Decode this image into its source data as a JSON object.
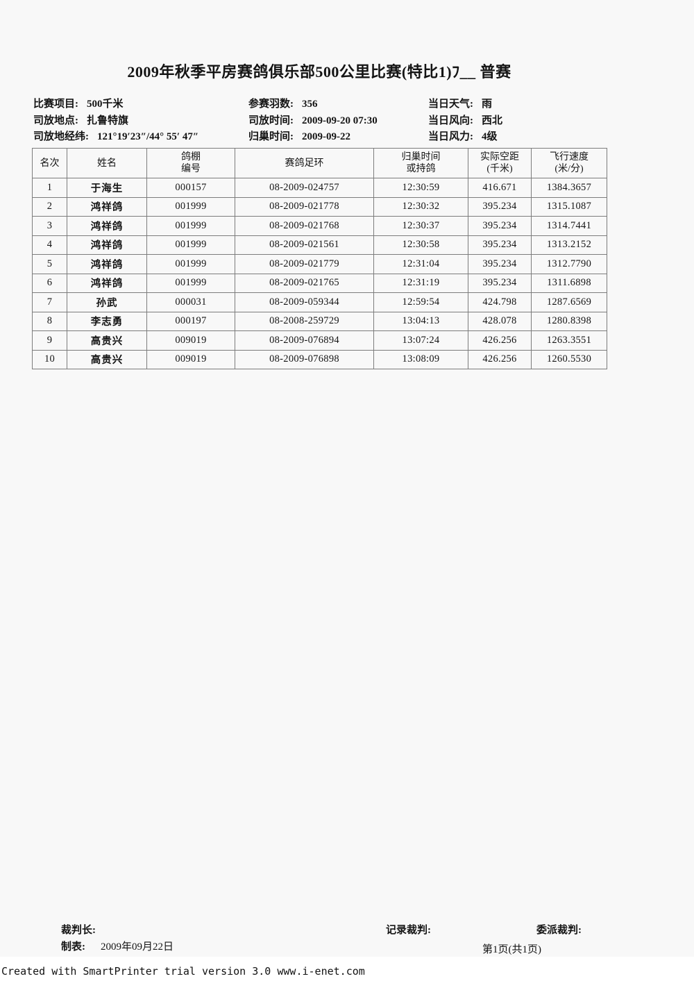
{
  "title": "2009年秋季平房赛鸽俱乐部500公里比赛(特比1)ﾌ__ 普赛",
  "info": {
    "col1": [
      {
        "label": "比赛项目:",
        "value": "500千米"
      },
      {
        "label": "司放地点:",
        "value": "扎鲁特旗"
      },
      {
        "label": "司放地经纬:",
        "value": "121°19′23″/44° 55′ 47″"
      }
    ],
    "col2": [
      {
        "label": "参赛羽数:",
        "value": "356"
      },
      {
        "label": "司放时间:",
        "value": "2009-09-20  07:30"
      },
      {
        "label": "归巢时间:",
        "value": "2009-09-22"
      }
    ],
    "col3": [
      {
        "label": "当日天气:",
        "value": "雨"
      },
      {
        "label": "当日风向:",
        "value": "西北"
      },
      {
        "label": "当日风力:",
        "value": "4级"
      }
    ]
  },
  "table": {
    "headers": [
      "名次",
      "姓名",
      "鸽棚\n编号",
      "赛鸽足环",
      "归巢时间\n或持鸽",
      "实际空距\n(千米)",
      "飞行速度\n(米/分)"
    ],
    "col_keys": [
      "rank",
      "name",
      "loft-number",
      "ring-number",
      "arrival-time",
      "distance-km",
      "speed-m-min"
    ],
    "rows": [
      [
        "1",
        "于海生",
        "000157",
        "08-2009-024757",
        "12:30:59",
        "416.671",
        "1384.3657"
      ],
      [
        "2",
        "鸿祥鸽",
        "001999",
        "08-2009-021778",
        "12:30:32",
        "395.234",
        "1315.1087"
      ],
      [
        "3",
        "鸿祥鸽",
        "001999",
        "08-2009-021768",
        "12:30:37",
        "395.234",
        "1314.7441"
      ],
      [
        "4",
        "鸿祥鸽",
        "001999",
        "08-2009-021561",
        "12:30:58",
        "395.234",
        "1313.2152"
      ],
      [
        "5",
        "鸿祥鸽",
        "001999",
        "08-2009-021779",
        "12:31:04",
        "395.234",
        "1312.7790"
      ],
      [
        "6",
        "鸿祥鸽",
        "001999",
        "08-2009-021765",
        "12:31:19",
        "395.234",
        "1311.6898"
      ],
      [
        "7",
        "孙武",
        "000031",
        "08-2009-059344",
        "12:59:54",
        "424.798",
        "1287.6569"
      ],
      [
        "8",
        "李志勇",
        "000197",
        "08-2008-259729",
        "13:04:13",
        "428.078",
        "1280.8398"
      ],
      [
        "9",
        "高贵兴",
        "009019",
        "08-2009-076894",
        "13:07:24",
        "426.256",
        "1263.3551"
      ],
      [
        "10",
        "高贵兴",
        "009019",
        "08-2009-076898",
        "13:08:09",
        "426.256",
        "1260.5530"
      ]
    ]
  },
  "footer": {
    "chief_judge_label": "裁判长:",
    "record_judge_label": "记录裁判:",
    "assigned_judge_label": "委派裁判:",
    "prepared_label": "制表:",
    "prepared_date": "2009年09月22日",
    "page_number": "第1页(共1页)"
  },
  "watermark": "Created with SmartPrinter trial version 3.0  www.i-enet.com"
}
